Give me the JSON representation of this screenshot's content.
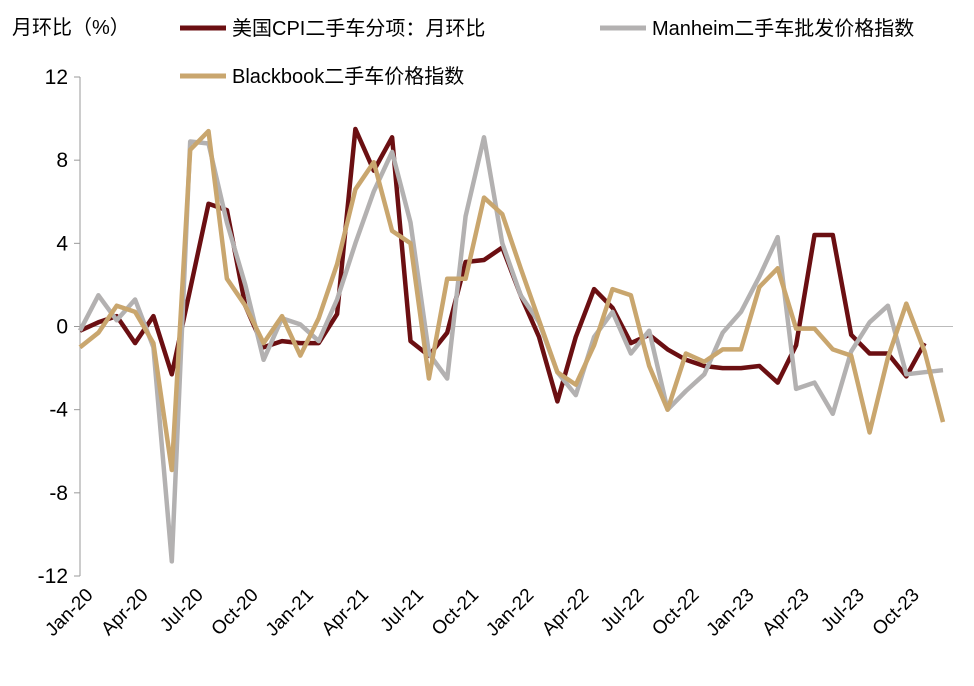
{
  "chart_data": {
    "type": "line",
    "y_label": "月环比（%）",
    "categories": [
      "Jan-20",
      null,
      null,
      "Apr-20",
      null,
      null,
      "Jul-20",
      null,
      null,
      "Oct-20",
      null,
      null,
      "Jan-21",
      null,
      null,
      "Apr-21",
      null,
      null,
      "Jul-21",
      null,
      null,
      "Oct-21",
      null,
      null,
      "Jan-22",
      null,
      null,
      "Apr-22",
      null,
      null,
      "Jul-22",
      null,
      null,
      "Oct-22",
      null,
      null,
      "Jan-23",
      null,
      null,
      "Apr-23",
      null,
      null,
      "Jul-23",
      null,
      null,
      "Oct-23",
      null,
      null
    ],
    "series": [
      {
        "name": "美国CPI二手车分项：月环比",
        "color": "#6b0f12",
        "values": [
          -0.2,
          0.2,
          0.5,
          -0.8,
          0.5,
          -2.3,
          1.8,
          5.9,
          5.6,
          1.0,
          -1.0,
          -0.7,
          -0.8,
          -0.8,
          0.6,
          9.5,
          7.5,
          9.1,
          -0.7,
          -1.4,
          -0.3,
          3.1,
          3.2,
          3.8,
          1.5,
          -0.5,
          -3.6,
          -0.5,
          1.8,
          0.9,
          -0.8,
          -0.4,
          -1.1,
          -1.6,
          -1.9,
          -2.0,
          -2.0,
          -1.9,
          -2.7,
          -0.9,
          4.4,
          4.4,
          -0.4,
          -1.3,
          -1.3,
          -2.4,
          -0.8,
          null
        ]
      },
      {
        "name": "Manheim二手车批发价格指数",
        "color": "#b3b1b1",
        "values": [
          -0.2,
          1.5,
          0.3,
          1.3,
          -1.0,
          -11.3,
          8.9,
          8.8,
          5.0,
          2.0,
          -1.6,
          0.4,
          0.1,
          -0.7,
          1.3,
          4.0,
          6.5,
          8.4,
          5.0,
          -1.3,
          -2.5,
          5.3,
          9.1,
          4.0,
          1.5,
          0.2,
          -2.2,
          -3.3,
          -0.5,
          0.7,
          -1.3,
          -0.2,
          -4.0,
          -3.1,
          -2.3,
          -0.3,
          0.7,
          2.4,
          4.3,
          -3.0,
          -2.7,
          -4.2,
          -1.2,
          0.2,
          1.0,
          -2.3,
          -2.2,
          -2.1
        ]
      },
      {
        "name": "Blackbook二手车价格指数",
        "color": "#c9a66e",
        "values": [
          -1.0,
          -0.3,
          1.0,
          0.7,
          -0.8,
          -6.9,
          8.5,
          9.4,
          2.3,
          1.0,
          -0.8,
          0.5,
          -1.4,
          0.4,
          3.0,
          6.6,
          7.9,
          4.6,
          4.0,
          -2.5,
          2.3,
          2.3,
          6.2,
          5.4,
          2.8,
          0.3,
          -2.2,
          -2.8,
          -0.9,
          1.8,
          1.5,
          -1.9,
          -4.0,
          -1.3,
          -1.7,
          -1.1,
          -1.1,
          1.9,
          2.8,
          -0.1,
          -0.1,
          -1.1,
          -1.4,
          -5.1,
          -1.5,
          1.1,
          -1.2,
          -4.6
        ]
      }
    ],
    "ylim": [
      -12,
      12
    ],
    "yticks": [
      -12,
      -8,
      -4,
      0,
      4,
      8,
      12
    ],
    "negative_tick_color": "#e00000",
    "legend": "top"
  }
}
